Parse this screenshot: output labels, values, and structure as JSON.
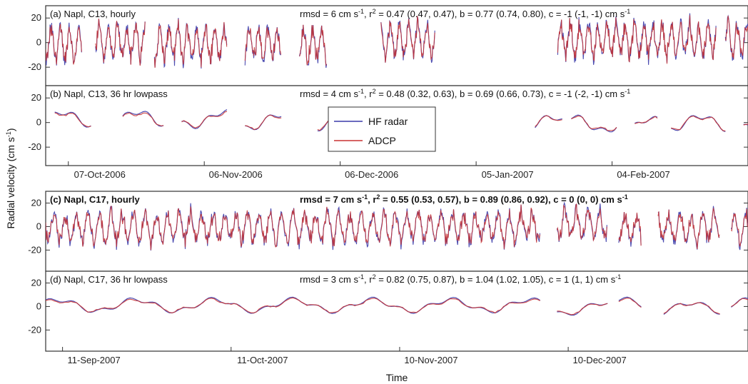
{
  "ylabel": "Radial velocity (cm s",
  "ylabel_sup": "-1",
  "ylabel_close": ")",
  "xlabel": "Time",
  "legend": {
    "hf": {
      "label": "HF radar",
      "color": "#3a3aa8"
    },
    "adcp": {
      "label": "ADCP",
      "color": "#c83232"
    }
  },
  "chart_data": [
    {
      "type": "line",
      "panel": "a",
      "title": "(a)  Napl, C13, hourly",
      "stats": {
        "rmsd": "rmsd = 6 cm s",
        "rmsd_sup": "-1",
        "r2": ",  r",
        "r2_sup": "2",
        "rest": " = 0.47 (0.47, 0.47),  b = 0.77 (0.74, 0.80),  c = -1 (-1, -1) cm s",
        "end_sup": "-1"
      },
      "ylim": [
        -35,
        30
      ],
      "yticks": [
        20,
        0,
        -20
      ],
      "xlim": [
        0,
        155
      ],
      "xticks": [],
      "xtick_labels": [],
      "smoothing": "hourly",
      "amplitude": 14,
      "segments": [
        [
          0,
          8
        ],
        [
          11,
          22
        ],
        [
          24,
          40
        ],
        [
          44,
          52
        ],
        [
          56,
          62
        ],
        [
          74,
          86
        ],
        [
          113,
          148
        ],
        [
          150,
          158
        ],
        [
          161,
          166
        ],
        [
          170,
          196
        ]
      ],
      "series": [
        {
          "name": "HF radar"
        },
        {
          "name": "ADCP"
        }
      ]
    },
    {
      "type": "line",
      "panel": "b",
      "title": "(b)  Napl, C13, 36 hr lowpass",
      "stats": {
        "rmsd": "rmsd = 4 cm s",
        "rmsd_sup": "-1",
        "r2": ",  r",
        "r2_sup": "2",
        "rest": " = 0.48 (0.32, 0.63),  b = 0.69 (0.66, 0.73),  c = -1 (-2, -1) cm s",
        "end_sup": "-1"
      },
      "ylim": [
        -35,
        30
      ],
      "yticks": [
        20,
        0,
        -20
      ],
      "xlim": [
        0,
        155
      ],
      "xticks": [
        5,
        35,
        65,
        95,
        125
      ],
      "xtick_labels": [
        "07-Oct-2006",
        "06-Nov-2006",
        "06-Dec-2006",
        "05-Jan-2007",
        "04-Feb-2007"
      ],
      "smoothing": "lowpass",
      "amplitude": 6,
      "segments": [
        [
          2,
          10
        ],
        [
          17,
          26
        ],
        [
          30,
          40
        ],
        [
          44,
          52
        ],
        [
          60,
          68
        ],
        [
          108,
          114
        ],
        [
          116,
          126
        ],
        [
          130,
          135
        ],
        [
          138,
          150
        ],
        [
          154,
          160
        ]
      ],
      "series": [
        {
          "name": "HF radar"
        },
        {
          "name": "ADCP"
        }
      ]
    },
    {
      "type": "line",
      "panel": "c",
      "title": "(c)  Napl, C17, hourly",
      "stats": {
        "rmsd": "rmsd = 7 cm s",
        "rmsd_sup": "-1",
        "r2": ",  r",
        "r2_sup": "2",
        "rest": " = 0.55 (0.53, 0.57),  b = 0.89 (0.86, 0.92),  c = 0 (0, 0) cm s",
        "end_sup": "-1"
      },
      "ylim": [
        -38,
        30
      ],
      "yticks": [
        20,
        0,
        -20
      ],
      "xlim": [
        0,
        125
      ],
      "xticks": [],
      "xtick_labels": [],
      "smoothing": "hourly",
      "amplitude": 13,
      "segments": [
        [
          0,
          88
        ],
        [
          91,
          100
        ],
        [
          102,
          106
        ],
        [
          109,
          120
        ],
        [
          122,
          130
        ]
      ],
      "series": [
        {
          "name": "HF radar"
        },
        {
          "name": "ADCP"
        }
      ]
    },
    {
      "type": "line",
      "panel": "d",
      "title": "(d)  Napl, C17, 36 hr lowpass",
      "stats": {
        "rmsd": "rmsd = 3 cm s",
        "rmsd_sup": "-1",
        "r2": ",  r",
        "r2_sup": "2",
        "rest": " = 0.82 (0.75, 0.87),  b = 1.04 (1.02, 1.05),  c = 1 (1, 1) cm s",
        "end_sup": "-1"
      },
      "ylim": [
        -38,
        30
      ],
      "yticks": [
        20,
        0,
        -20
      ],
      "xlim": [
        0,
        125
      ],
      "xticks": [
        3,
        33,
        63,
        93
      ],
      "xtick_labels": [
        "11-Sep-2007",
        "11-Oct-2007",
        "10-Nov-2007",
        "10-Dec-2007"
      ],
      "smoothing": "lowpass",
      "amplitude": 5,
      "segments": [
        [
          0,
          88
        ],
        [
          91,
          100
        ],
        [
          102,
          106
        ],
        [
          110,
          120
        ],
        [
          122,
          130
        ]
      ],
      "series": [
        {
          "name": "HF radar"
        },
        {
          "name": "ADCP"
        }
      ]
    }
  ]
}
